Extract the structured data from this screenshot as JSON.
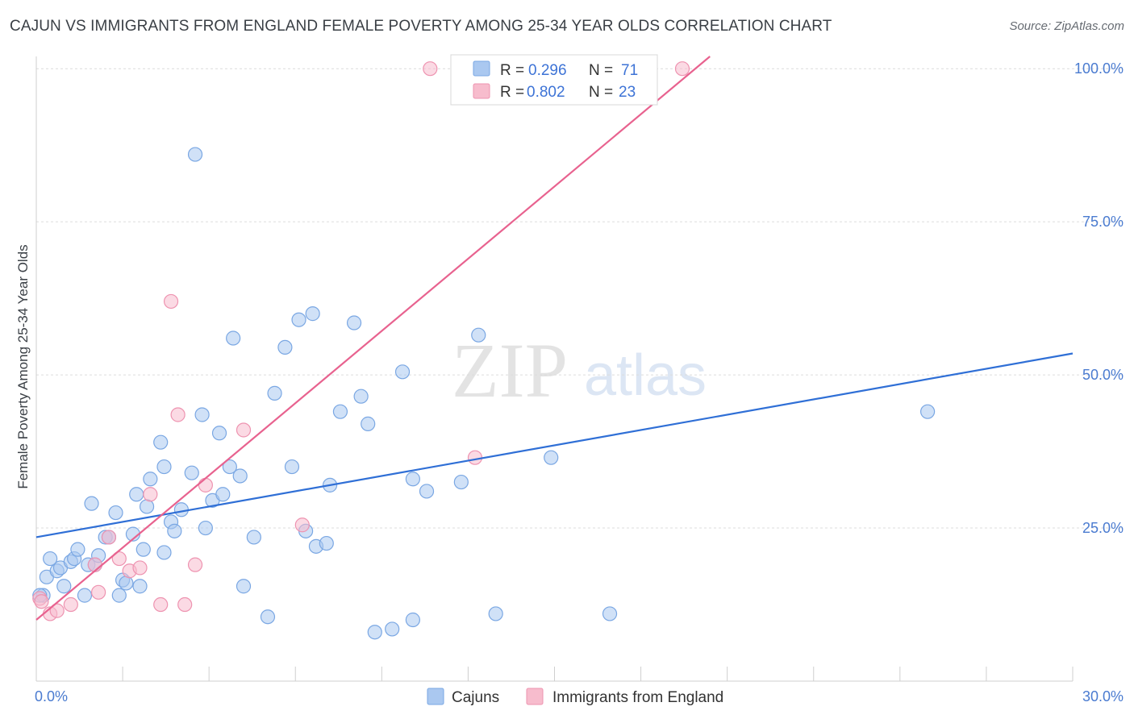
{
  "header": {
    "title": "CAJUN VS IMMIGRANTS FROM ENGLAND FEMALE POVERTY AMONG 25-34 YEAR OLDS CORRELATION CHART",
    "source": "Source: ZipAtlas.com"
  },
  "watermark": {
    "zip": "ZIP",
    "atlas": "atlas"
  },
  "colors": {
    "blue_fill": "#aac8f0",
    "blue_stroke": "#7aa7e3",
    "blue_line": "#2f6fd6",
    "pink_fill": "#f7bccd",
    "pink_stroke": "#ee93b0",
    "pink_line": "#e8628f",
    "grid": "#dcdcdc",
    "tick_text": "#4a7bd0"
  },
  "legend": {
    "rows": [
      {
        "r_label": "R = ",
        "r_value": "0.296",
        "n_label": "N = ",
        "n_value": "71"
      },
      {
        "r_label": "R = ",
        "r_value": "0.802",
        "n_label": "N = ",
        "n_value": "23"
      }
    ]
  },
  "bottom_legend": {
    "series1": "Cajuns",
    "series2": "Immigrants from England"
  },
  "chart_data": {
    "type": "scatter",
    "title": "CAJUN VS IMMIGRANTS FROM ENGLAND FEMALE POVERTY AMONG 25-34 YEAR OLDS CORRELATION CHART",
    "xlabel": "",
    "ylabel": "Female Poverty Among 25-34 Year Olds",
    "xlim": [
      0,
      30
    ],
    "ylim": [
      0,
      102
    ],
    "x_tick_labels": [
      {
        "value": 0,
        "label": "0.0%"
      },
      {
        "value": 30,
        "label": "30.0%"
      }
    ],
    "y_tick_labels": [
      {
        "value": 25,
        "label": "25.0%"
      },
      {
        "value": 50,
        "label": "50.0%"
      },
      {
        "value": 75,
        "label": "75.0%"
      },
      {
        "value": 100,
        "label": "100.0%"
      }
    ],
    "y_gridlines": [
      25,
      50,
      75,
      100
    ],
    "series": [
      {
        "name": "Cajuns",
        "r": 0.296,
        "n": 71,
        "trend": {
          "x": [
            0,
            30
          ],
          "y": [
            23.5,
            53.5
          ]
        },
        "points": [
          {
            "x": 0.2,
            "y": 14
          },
          {
            "x": 0.3,
            "y": 17
          },
          {
            "x": 0.4,
            "y": 20
          },
          {
            "x": 0.6,
            "y": 18
          },
          {
            "x": 0.7,
            "y": 18.5
          },
          {
            "x": 0.8,
            "y": 15.5
          },
          {
            "x": 1.0,
            "y": 19.5
          },
          {
            "x": 1.1,
            "y": 20
          },
          {
            "x": 1.2,
            "y": 21.5
          },
          {
            "x": 1.4,
            "y": 14
          },
          {
            "x": 1.5,
            "y": 19
          },
          {
            "x": 1.6,
            "y": 29
          },
          {
            "x": 1.7,
            "y": 19
          },
          {
            "x": 1.8,
            "y": 20.5
          },
          {
            "x": 2.0,
            "y": 23.5
          },
          {
            "x": 2.1,
            "y": 23.5
          },
          {
            "x": 2.3,
            "y": 27.5
          },
          {
            "x": 2.4,
            "y": 14
          },
          {
            "x": 2.5,
            "y": 16.5
          },
          {
            "x": 2.6,
            "y": 16
          },
          {
            "x": 2.8,
            "y": 24
          },
          {
            "x": 2.9,
            "y": 30.5
          },
          {
            "x": 3.0,
            "y": 15.5
          },
          {
            "x": 3.1,
            "y": 21.5
          },
          {
            "x": 3.2,
            "y": 28.5
          },
          {
            "x": 3.3,
            "y": 33
          },
          {
            "x": 3.6,
            "y": 39
          },
          {
            "x": 3.7,
            "y": 35
          },
          {
            "x": 3.7,
            "y": 21
          },
          {
            "x": 3.9,
            "y": 26
          },
          {
            "x": 4.0,
            "y": 24.5
          },
          {
            "x": 4.2,
            "y": 28
          },
          {
            "x": 4.5,
            "y": 34
          },
          {
            "x": 4.6,
            "y": 86
          },
          {
            "x": 4.8,
            "y": 43.5
          },
          {
            "x": 4.9,
            "y": 25
          },
          {
            "x": 5.1,
            "y": 29.5
          },
          {
            "x": 5.3,
            "y": 40.5
          },
          {
            "x": 5.4,
            "y": 30.5
          },
          {
            "x": 5.6,
            "y": 35
          },
          {
            "x": 5.7,
            "y": 56
          },
          {
            "x": 5.9,
            "y": 33.5
          },
          {
            "x": 6.0,
            "y": 15.5
          },
          {
            "x": 6.3,
            "y": 23.5
          },
          {
            "x": 6.7,
            "y": 10.5
          },
          {
            "x": 6.9,
            "y": 47
          },
          {
            "x": 7.2,
            "y": 54.5
          },
          {
            "x": 7.4,
            "y": 35
          },
          {
            "x": 7.6,
            "y": 59
          },
          {
            "x": 7.8,
            "y": 24.5
          },
          {
            "x": 8.0,
            "y": 60
          },
          {
            "x": 8.1,
            "y": 22
          },
          {
            "x": 8.4,
            "y": 22.5
          },
          {
            "x": 8.5,
            "y": 32
          },
          {
            "x": 8.8,
            "y": 44
          },
          {
            "x": 9.2,
            "y": 58.5
          },
          {
            "x": 9.4,
            "y": 46.5
          },
          {
            "x": 9.6,
            "y": 42
          },
          {
            "x": 9.8,
            "y": 8
          },
          {
            "x": 10.3,
            "y": 8.5
          },
          {
            "x": 10.6,
            "y": 50.5
          },
          {
            "x": 10.9,
            "y": 33
          },
          {
            "x": 10.9,
            "y": 10
          },
          {
            "x": 11.3,
            "y": 31
          },
          {
            "x": 12.3,
            "y": 32.5
          },
          {
            "x": 12.8,
            "y": 56.5
          },
          {
            "x": 13.3,
            "y": 11
          },
          {
            "x": 14.9,
            "y": 36.5
          },
          {
            "x": 16.6,
            "y": 11
          },
          {
            "x": 25.8,
            "y": 44
          },
          {
            "x": 0.1,
            "y": 14
          }
        ]
      },
      {
        "name": "Immigrants from England",
        "r": 0.802,
        "n": 23,
        "trend": {
          "x": [
            0,
            19.5
          ],
          "y": [
            10,
            102
          ]
        },
        "points": [
          {
            "x": 0.1,
            "y": 13.5
          },
          {
            "x": 0.4,
            "y": 11
          },
          {
            "x": 0.6,
            "y": 11.5
          },
          {
            "x": 1.0,
            "y": 12.5
          },
          {
            "x": 1.7,
            "y": 19
          },
          {
            "x": 1.8,
            "y": 14.5
          },
          {
            "x": 2.1,
            "y": 23.5
          },
          {
            "x": 2.4,
            "y": 20
          },
          {
            "x": 2.7,
            "y": 18
          },
          {
            "x": 3.0,
            "y": 18.5
          },
          {
            "x": 3.3,
            "y": 30.5
          },
          {
            "x": 3.6,
            "y": 12.5
          },
          {
            "x": 3.9,
            "y": 62
          },
          {
            "x": 4.1,
            "y": 43.5
          },
          {
            "x": 4.3,
            "y": 12.5
          },
          {
            "x": 4.6,
            "y": 19
          },
          {
            "x": 4.9,
            "y": 32
          },
          {
            "x": 6.0,
            "y": 41
          },
          {
            "x": 7.7,
            "y": 25.5
          },
          {
            "x": 11.4,
            "y": 100
          },
          {
            "x": 12.7,
            "y": 36.5
          },
          {
            "x": 18.7,
            "y": 100
          },
          {
            "x": 0.15,
            "y": 13
          }
        ]
      }
    ]
  }
}
